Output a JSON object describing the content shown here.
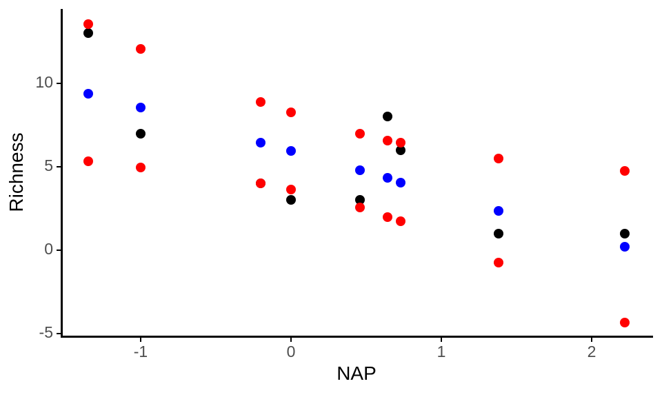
{
  "chart_data": {
    "type": "scatter",
    "title": "",
    "xlabel": "NAP",
    "ylabel": "Richness",
    "grid": false,
    "legend": "none",
    "x_axis": {
      "ticks": [
        -1,
        0,
        1,
        2
      ],
      "tick_labels": [
        "-1",
        "0",
        "1",
        "2"
      ],
      "range": [
        -1.53,
        2.41
      ]
    },
    "y_axis": {
      "ticks": [
        10,
        5,
        0,
        -5
      ],
      "tick_labels": [
        "10",
        "5",
        "0",
        "-5"
      ],
      "range": [
        -5.2,
        14.5
      ]
    },
    "x": [
      -1.35,
      -1.0,
      -0.2,
      0.0,
      0.46,
      0.64,
      0.73,
      1.38,
      2.22
    ],
    "series": [
      {
        "name": "observed-black",
        "color": "#000000",
        "values": [
          13,
          7,
          4,
          3,
          3,
          8,
          6,
          1,
          1
        ]
      },
      {
        "name": "fitted-blue",
        "color": "#0000ff",
        "values": [
          9.4,
          8.55,
          6.45,
          5.95,
          4.8,
          4.35,
          4.05,
          2.35,
          0.2
        ]
      },
      {
        "name": "upper-interval-red",
        "color": "#ff0000",
        "values": [
          13.55,
          12.05,
          8.9,
          8.25,
          7.0,
          6.55,
          6.45,
          5.5,
          4.75
        ]
      },
      {
        "name": "lower-interval-red",
        "color": "#ff0000",
        "values": [
          5.35,
          4.95,
          4.0,
          3.65,
          2.55,
          2.0,
          1.75,
          -0.75,
          -4.35
        ]
      }
    ],
    "point_colors": {
      "black": "#000000",
      "blue": "#0000ff",
      "red": "#ff0000"
    },
    "axis_color": "#000000",
    "tick_label_color": "#4d4d4d"
  }
}
